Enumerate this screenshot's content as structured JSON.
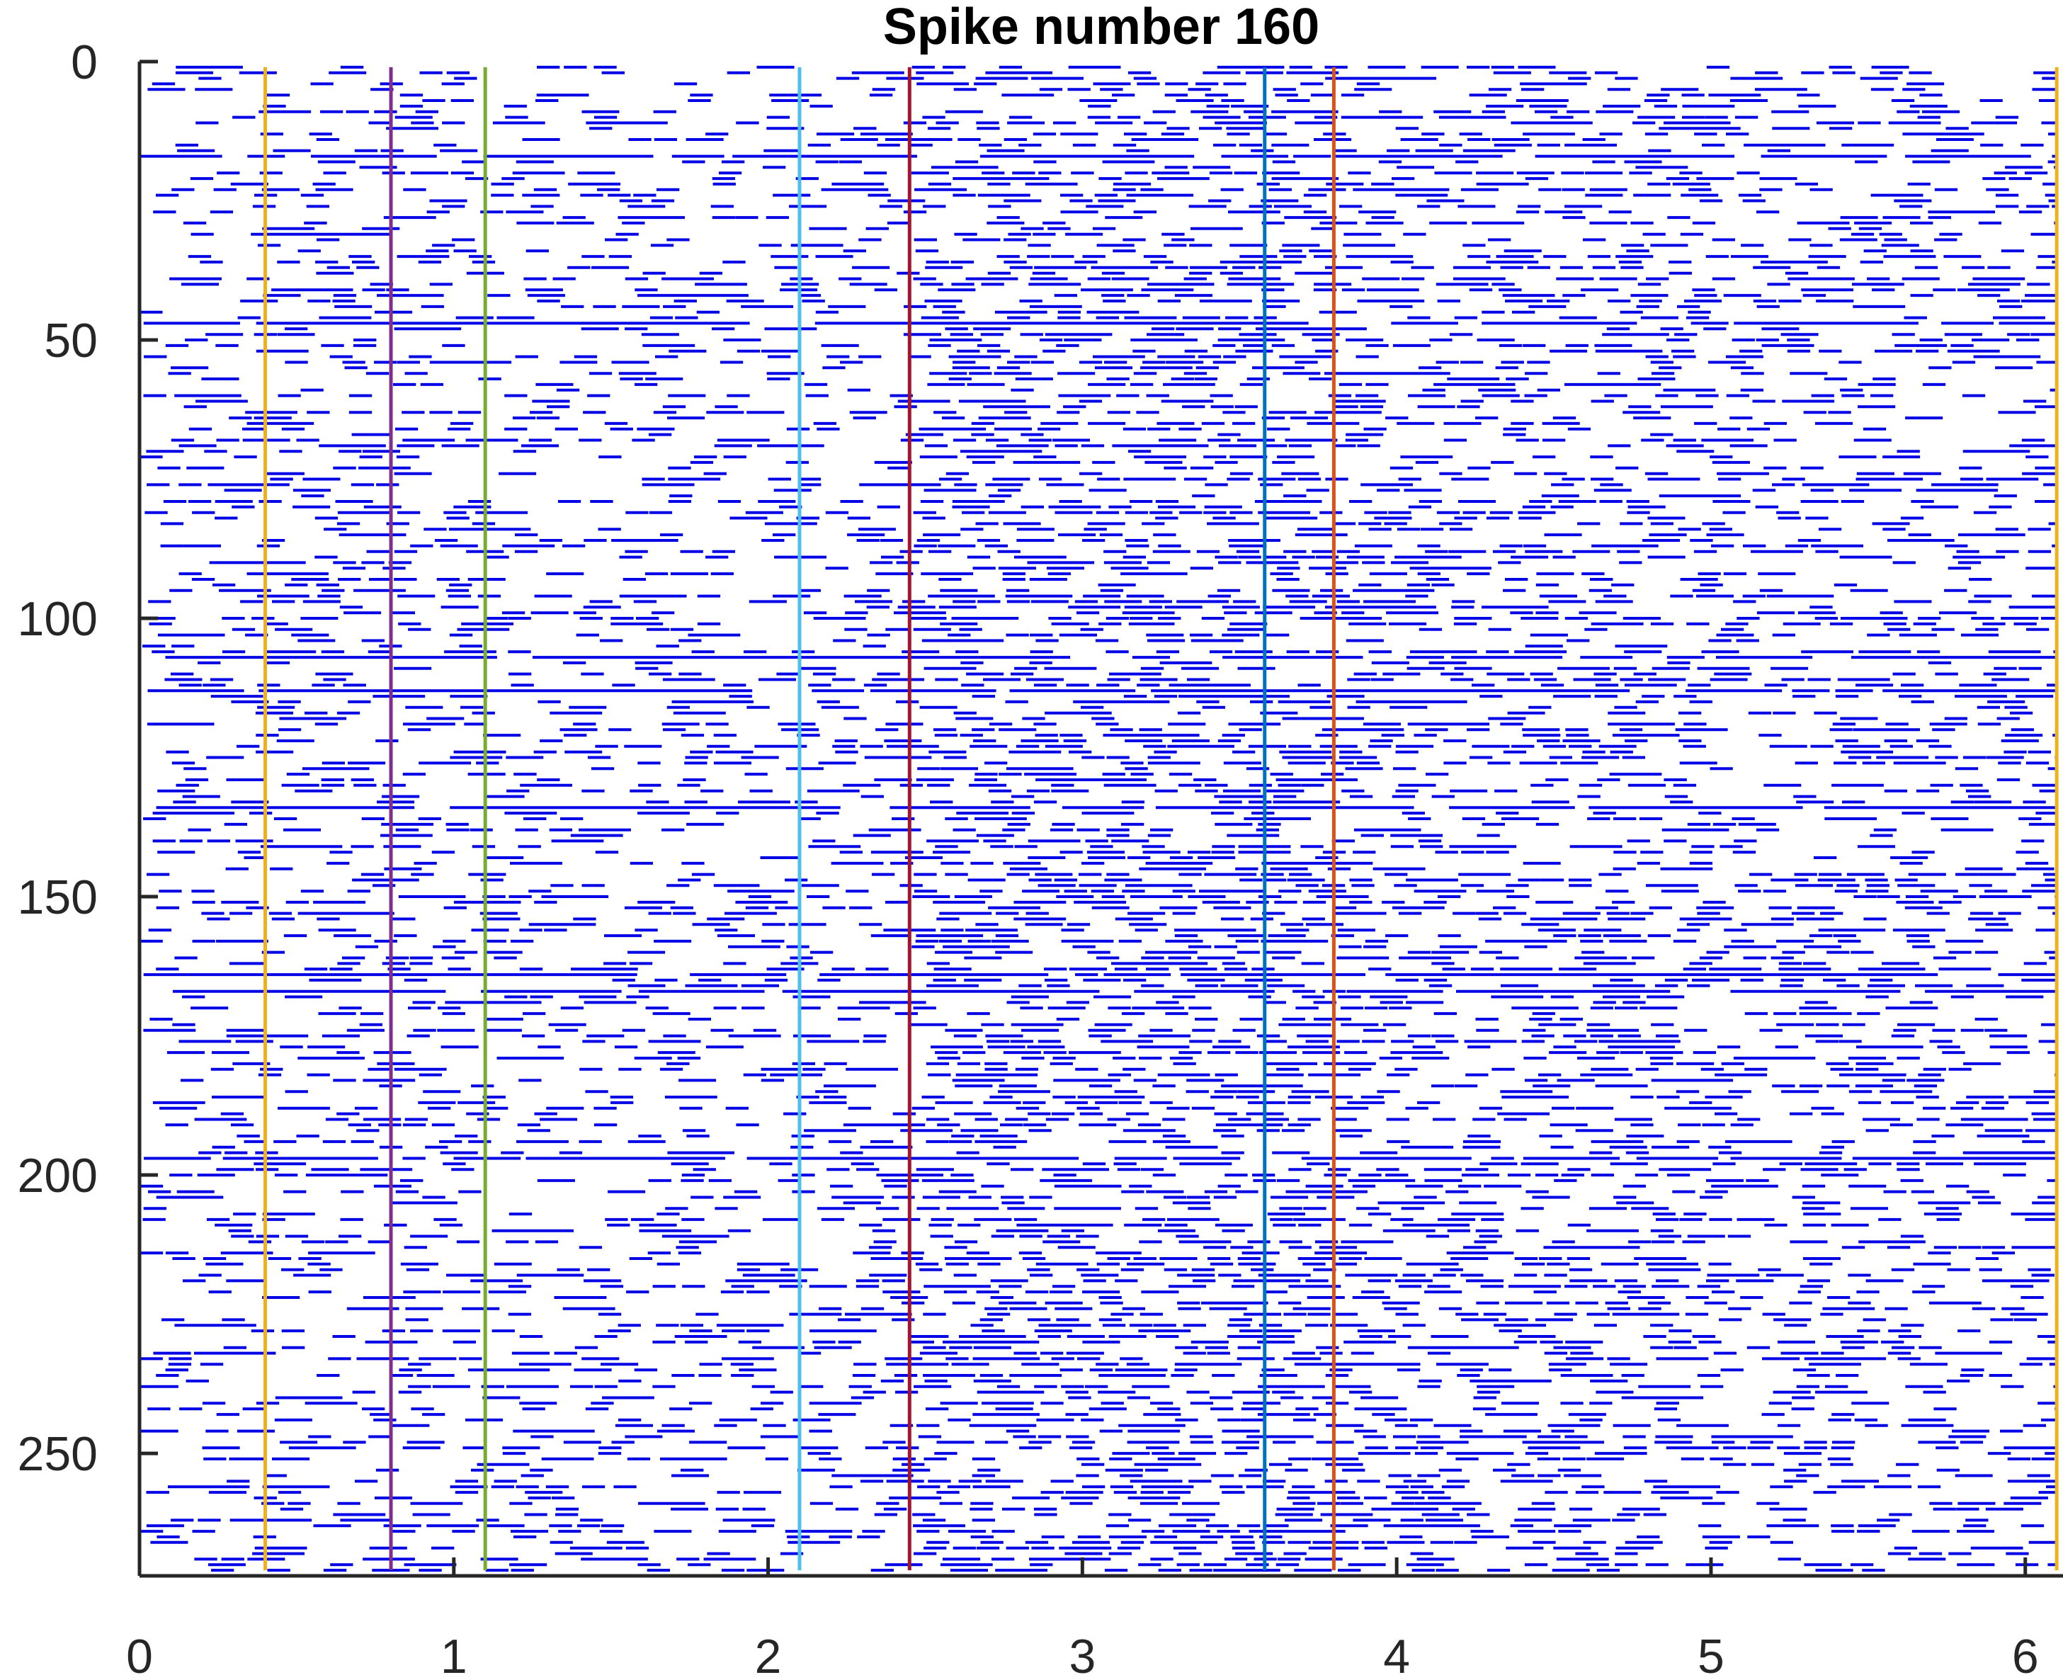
{
  "chart_data": {
    "type": "scatter",
    "subtype": "raster",
    "title": "Spike number 160",
    "xlabel": "",
    "ylabel": "",
    "xlim": [
      0,
      6.12
    ],
    "ylim": [
      0,
      272
    ],
    "y_reversed": true,
    "x_ticks": [
      0,
      1,
      2,
      3,
      4,
      5,
      6
    ],
    "y_ticks": [
      0,
      50,
      100,
      150,
      200,
      250
    ],
    "x_tick_labels": [
      "0",
      "1",
      "2",
      "3",
      "4",
      "5",
      "6"
    ],
    "y_tick_labels": [
      "0",
      "50",
      "100",
      "150",
      "200",
      "250"
    ],
    "n_trials": 272,
    "grid": false,
    "legend": "none",
    "raster_color": "#0000e6",
    "event_markers": [
      {
        "x": 0.0,
        "color": "#d95319"
      },
      {
        "x": 0.4,
        "color": "#edb120"
      },
      {
        "x": 0.8,
        "color": "#7e2f8e"
      },
      {
        "x": 1.1,
        "color": "#77ac30"
      },
      {
        "x": 2.1,
        "color": "#4dbeee"
      },
      {
        "x": 2.45,
        "color": "#a2142f"
      },
      {
        "x": 3.58,
        "color": "#0072bd"
      },
      {
        "x": 3.8,
        "color": "#d95319"
      },
      {
        "x": 6.1,
        "color": "#edb120"
      }
    ],
    "dense_trials": [
      17,
      47,
      107,
      113,
      134,
      164,
      167,
      197
    ]
  }
}
